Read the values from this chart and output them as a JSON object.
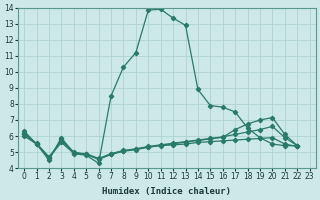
{
  "xlabel": "Humidex (Indice chaleur)",
  "xlim": [
    -0.5,
    23.5
  ],
  "ylim": [
    4,
    14
  ],
  "xticks": [
    0,
    1,
    2,
    3,
    4,
    5,
    6,
    7,
    8,
    9,
    10,
    11,
    12,
    13,
    14,
    15,
    16,
    17,
    18,
    19,
    20,
    21,
    22,
    23
  ],
  "yticks": [
    4,
    5,
    6,
    7,
    8,
    9,
    10,
    11,
    12,
    13,
    14
  ],
  "bg_color": "#cce8e8",
  "line_color": "#2a7a6a",
  "grid_color": "#aacece",
  "line1": {
    "x": [
      0,
      1,
      2,
      3,
      4,
      5,
      6,
      7,
      8,
      9,
      10,
      11,
      12,
      13,
      14,
      15,
      16,
      17,
      18,
      19,
      20,
      21,
      22
    ],
    "y": [
      6.3,
      5.5,
      4.5,
      5.9,
      4.9,
      4.8,
      4.3,
      8.5,
      10.3,
      11.2,
      13.85,
      13.9,
      13.35,
      12.9,
      8.9,
      7.9,
      7.8,
      7.5,
      6.5,
      5.9,
      5.5,
      5.4,
      5.4
    ]
  },
  "line2": {
    "x": [
      0,
      1,
      2,
      3,
      4,
      5,
      6,
      7,
      8,
      9,
      10,
      11,
      12,
      13,
      14,
      15,
      16,
      17,
      18,
      19,
      20,
      21,
      22
    ],
    "y": [
      6.2,
      5.5,
      4.6,
      5.8,
      5.0,
      4.85,
      4.55,
      4.85,
      5.05,
      5.15,
      5.3,
      5.4,
      5.45,
      5.5,
      5.6,
      5.65,
      5.7,
      5.75,
      5.8,
      5.85,
      5.9,
      5.5,
      5.35
    ]
  },
  "line3": {
    "x": [
      0,
      1,
      2,
      3,
      4,
      5,
      6,
      7,
      8,
      9,
      10,
      11,
      12,
      13,
      14,
      15,
      16,
      17,
      18,
      19,
      20,
      21,
      22
    ],
    "y": [
      6.1,
      5.55,
      4.7,
      5.7,
      4.95,
      4.9,
      4.6,
      4.9,
      5.1,
      5.2,
      5.35,
      5.45,
      5.55,
      5.65,
      5.75,
      5.85,
      5.95,
      6.1,
      6.25,
      6.4,
      6.6,
      5.9,
      5.4
    ]
  },
  "line4": {
    "x": [
      0,
      1,
      2,
      3,
      4,
      5,
      6,
      7,
      8,
      9,
      10,
      11,
      12,
      13,
      14,
      15,
      16,
      17,
      18,
      19,
      20,
      21,
      22
    ],
    "y": [
      6.0,
      5.5,
      4.65,
      5.6,
      4.92,
      4.88,
      4.55,
      4.88,
      5.08,
      5.18,
      5.32,
      5.42,
      5.52,
      5.62,
      5.72,
      5.82,
      5.92,
      6.4,
      6.75,
      7.0,
      7.15,
      6.1,
      5.4
    ]
  }
}
